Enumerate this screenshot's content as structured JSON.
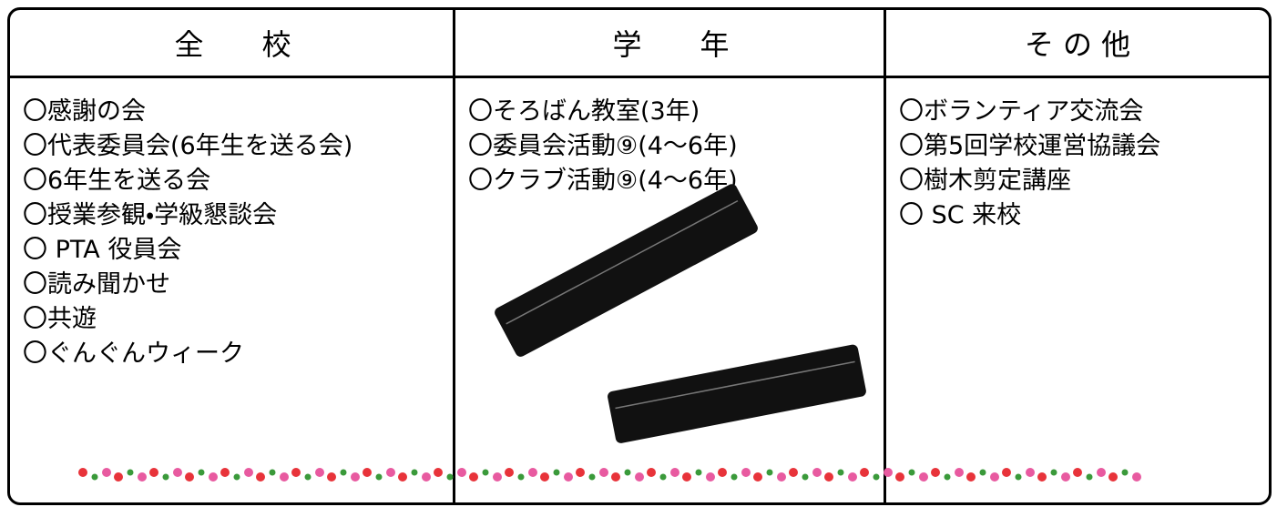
{
  "table": {
    "headers": [
      "全　　校",
      "学　　年",
      "そ の 他"
    ],
    "columns": [
      [
        "〇感謝の会",
        "〇代表委員会(6年生を送る会)",
        "〇6年生を送る会",
        "〇授業参観・学級懇談会",
        "〇 PTA 役員会",
        "〇読み聞かせ",
        "〇共遊",
        "〇ぐんぐんウィーク"
      ],
      [
        "〇そろばん教室(3年)",
        "〇委員会活動⑨(4〜6年)",
        "〇クラブ活動⑨(4〜6年)"
      ],
      [
        "〇ボランティア交流会",
        "〇第5回学校運営協議会",
        "〇樹木剪定講座",
        "〇 SC 来校"
      ]
    ]
  }
}
